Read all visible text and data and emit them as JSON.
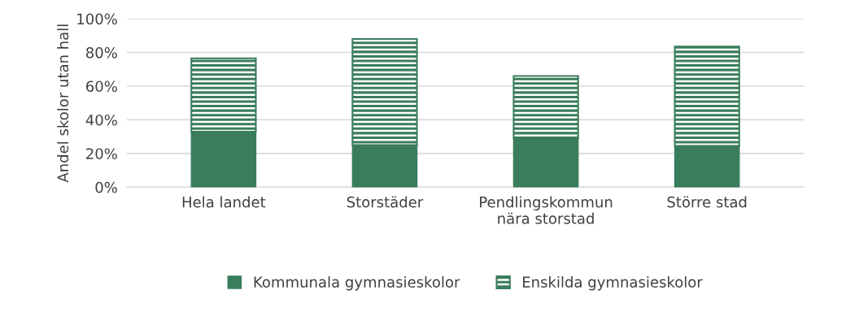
{
  "chart_data": {
    "type": "bar",
    "stacked": true,
    "ylabel": "Andel skolor utan hall",
    "categories": [
      "Hela landet",
      "Storstäder",
      "Pendlingskommun\nnära storstad",
      "Större stad"
    ],
    "series": [
      {
        "name": "Kommunala gymnasieskolor",
        "color": "#3a7d5c",
        "values": [
          33,
          25,
          29,
          24.5
        ]
      },
      {
        "name": "Enskilda gymnasieskolor",
        "color": "#3a7d5c",
        "values": [
          43.5,
          63,
          37,
          59
        ]
      }
    ],
    "ylim": [
      0,
      100
    ],
    "yticks": [
      {
        "value": 0,
        "label": "0%"
      },
      {
        "value": 20,
        "label": "20%"
      },
      {
        "value": 40,
        "label": "40%"
      },
      {
        "value": 60,
        "label": "60%"
      },
      {
        "value": 80,
        "label": "80%"
      },
      {
        "value": 100,
        "label": "100%"
      }
    ],
    "grid": "y",
    "legend": "bottom"
  }
}
